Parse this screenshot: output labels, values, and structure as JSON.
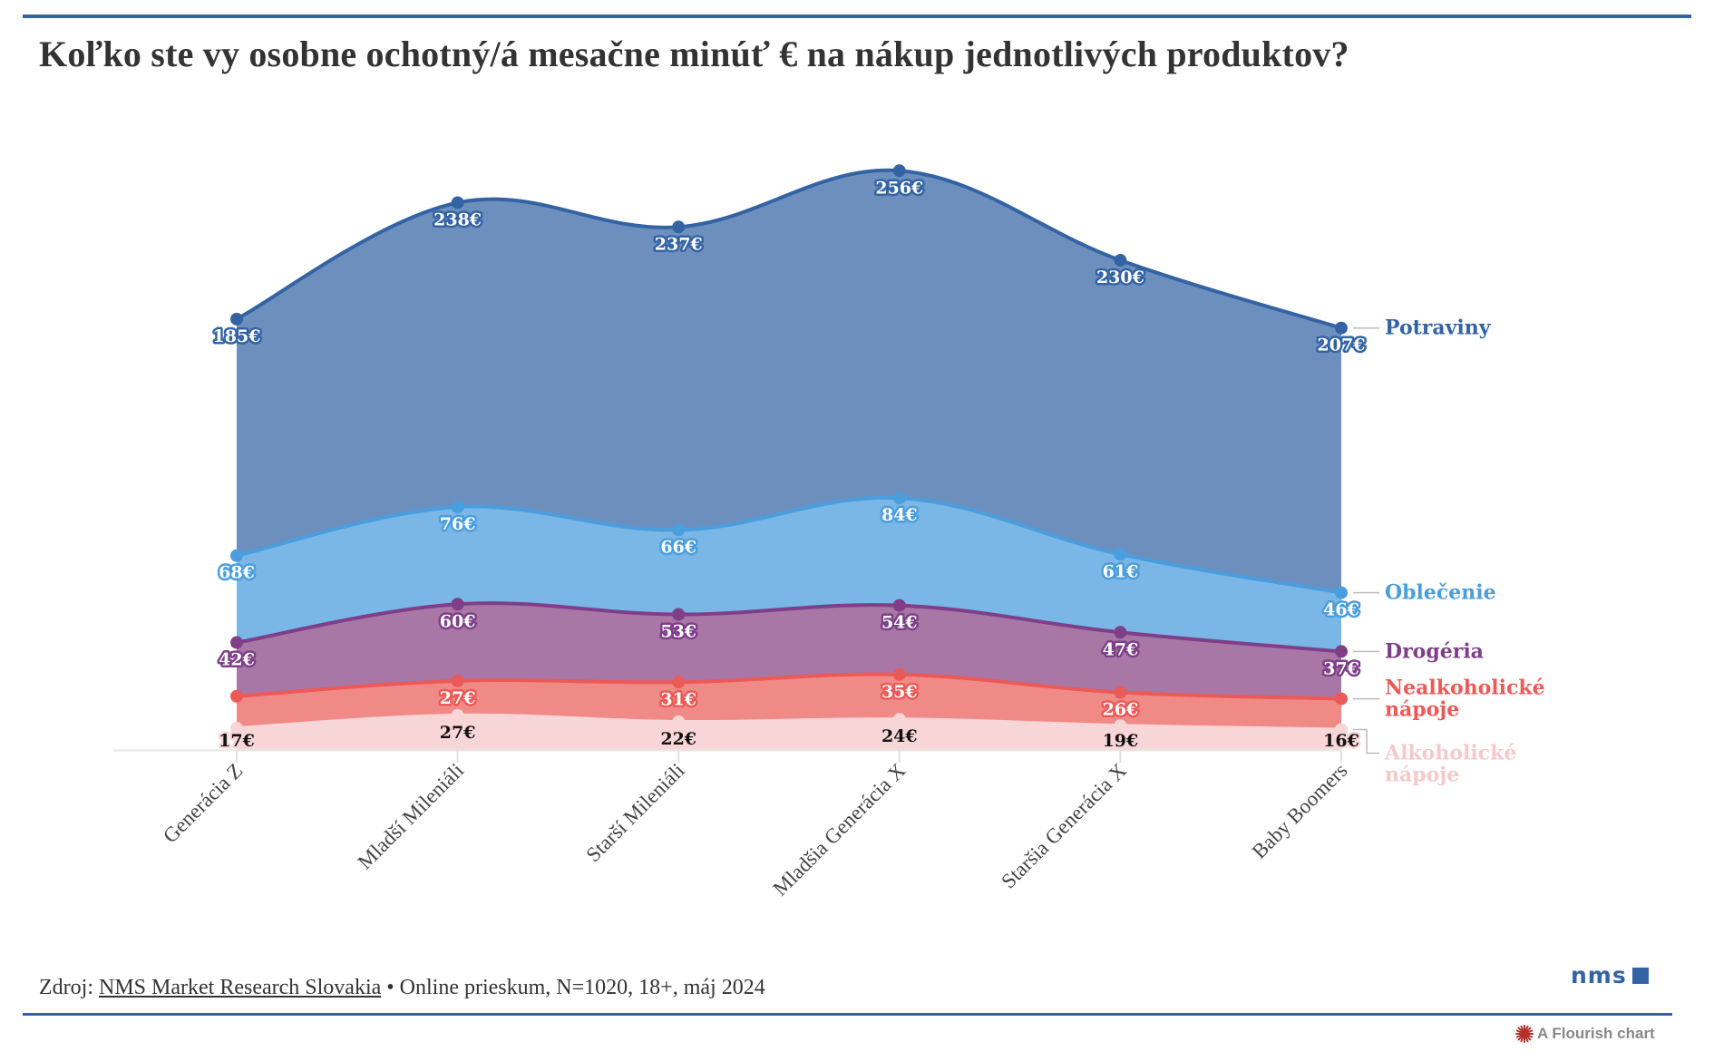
{
  "title": "Koľko ste vy osobne ochotný/á mesačne minúť € na nákup jednotlivých produktov?",
  "footer": {
    "prefix": "Zdroj: ",
    "source_link": "NMS Market Research Slovakia",
    "suffix": " • Online prieskum, N=1020, 18+, máj 2024"
  },
  "logo": {
    "text": "nms",
    "icon": "square-icon"
  },
  "credit": {
    "icon": "flourish-burst-icon",
    "text": "A Flourish chart"
  },
  "chart_data": {
    "type": "area",
    "stacked": true,
    "title": "Koľko ste vy osobne ochotný/á mesačne minúť € na nákup jednotlivých produktov?",
    "xlabel": "",
    "ylabel": "",
    "unit": "€",
    "grid": false,
    "y_axis_visible": false,
    "legend": "right (inline labels at series end)",
    "categories": [
      "Generácia Z",
      "Mladší Mileniáli",
      "Starší Mileniáli",
      "Mladšia Generácia X",
      "Staršia Generácia X",
      "Baby Boomers"
    ],
    "series": [
      {
        "name": "Alkoholické nápoje",
        "color": "#f8d5d6",
        "label_text_color": "#111111",
        "label_halo": "#f8d5d6",
        "values": [
          17,
          27,
          22,
          24,
          19,
          16
        ],
        "labels_shown": [
          true,
          true,
          true,
          true,
          true,
          true
        ]
      },
      {
        "name": "Nealkoholické nápoje",
        "color": "#eb5a57",
        "fill": "#f08a86",
        "label_text_color": "#ffffff",
        "label_halo": "#eb5a57",
        "values": [
          25,
          27,
          31,
          35,
          26,
          24
        ],
        "labels_shown": [
          false,
          true,
          true,
          true,
          true,
          false
        ]
      },
      {
        "name": "Drogéria",
        "color": "#7e3f88",
        "fill": "#a877a6",
        "label_text_color": "#ffffff",
        "label_halo": "#7e3f88",
        "values": [
          42,
          60,
          53,
          54,
          47,
          37
        ],
        "labels_shown": [
          true,
          true,
          true,
          true,
          true,
          true
        ]
      },
      {
        "name": "Oblečenie",
        "color": "#4a9ede",
        "fill": "#7ab6e6",
        "label_text_color": "#ffffff",
        "label_halo": "#4a9ede",
        "values": [
          68,
          76,
          66,
          84,
          61,
          46
        ],
        "labels_shown": [
          true,
          true,
          true,
          true,
          true,
          true
        ]
      },
      {
        "name": "Potraviny",
        "color": "#3463a4",
        "fill": "#6c8fbe",
        "label_text_color": "#ffffff",
        "label_halo": "#3463a4",
        "values": [
          185,
          238,
          237,
          256,
          230,
          207
        ],
        "labels_shown": [
          true,
          true,
          true,
          true,
          true,
          true
        ]
      }
    ],
    "legend_label_lines": {
      "Alkoholické nápoje": [
        "Alkoholické",
        "nápoje"
      ],
      "Nealkoholické nápoje": [
        "Nealkoholické",
        "nápoje"
      ],
      "Drogéria": [
        "Drogéria"
      ],
      "Oblečenie": [
        "Oblečenie"
      ],
      "Potraviny": [
        "Potraviny"
      ]
    }
  }
}
